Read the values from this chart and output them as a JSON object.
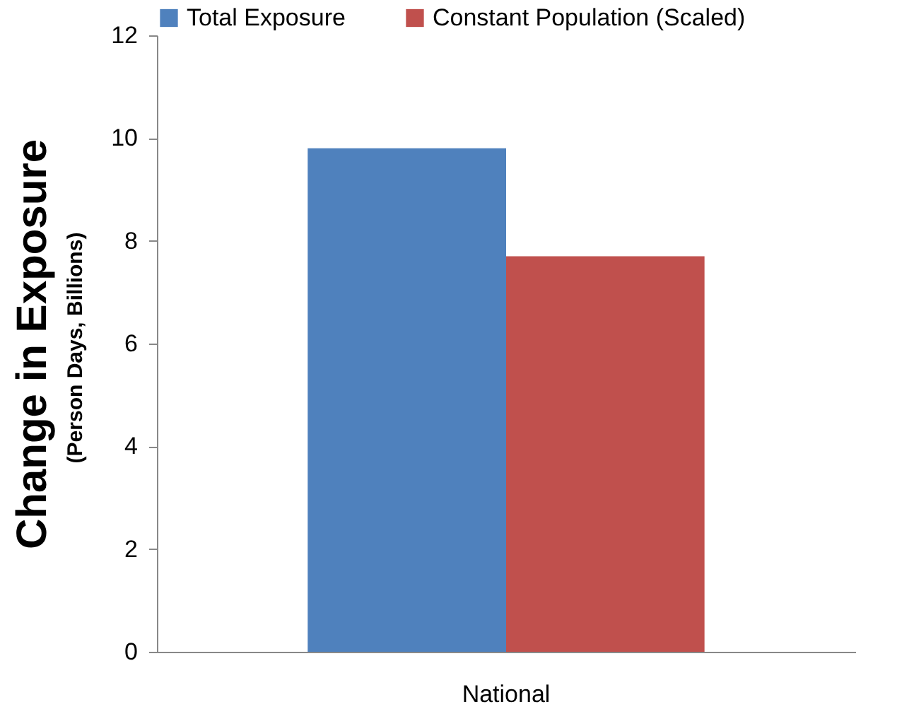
{
  "chart_data": {
    "type": "bar",
    "ylabel": "Change in Exposure\n(Person Days, Billions)",
    "categories": [
      "National"
    ],
    "series": [
      {
        "name": "Total Exposure",
        "color": "#4f81bd",
        "values": [
          9.8
        ]
      },
      {
        "name": "Constant Population (Scaled)",
        "color": "#c0504d",
        "values": [
          7.7
        ]
      }
    ],
    "ylim": [
      0,
      12
    ],
    "yticks": [
      0,
      2,
      4,
      6,
      8,
      10,
      12
    ],
    "grid": false,
    "legend": "top"
  }
}
